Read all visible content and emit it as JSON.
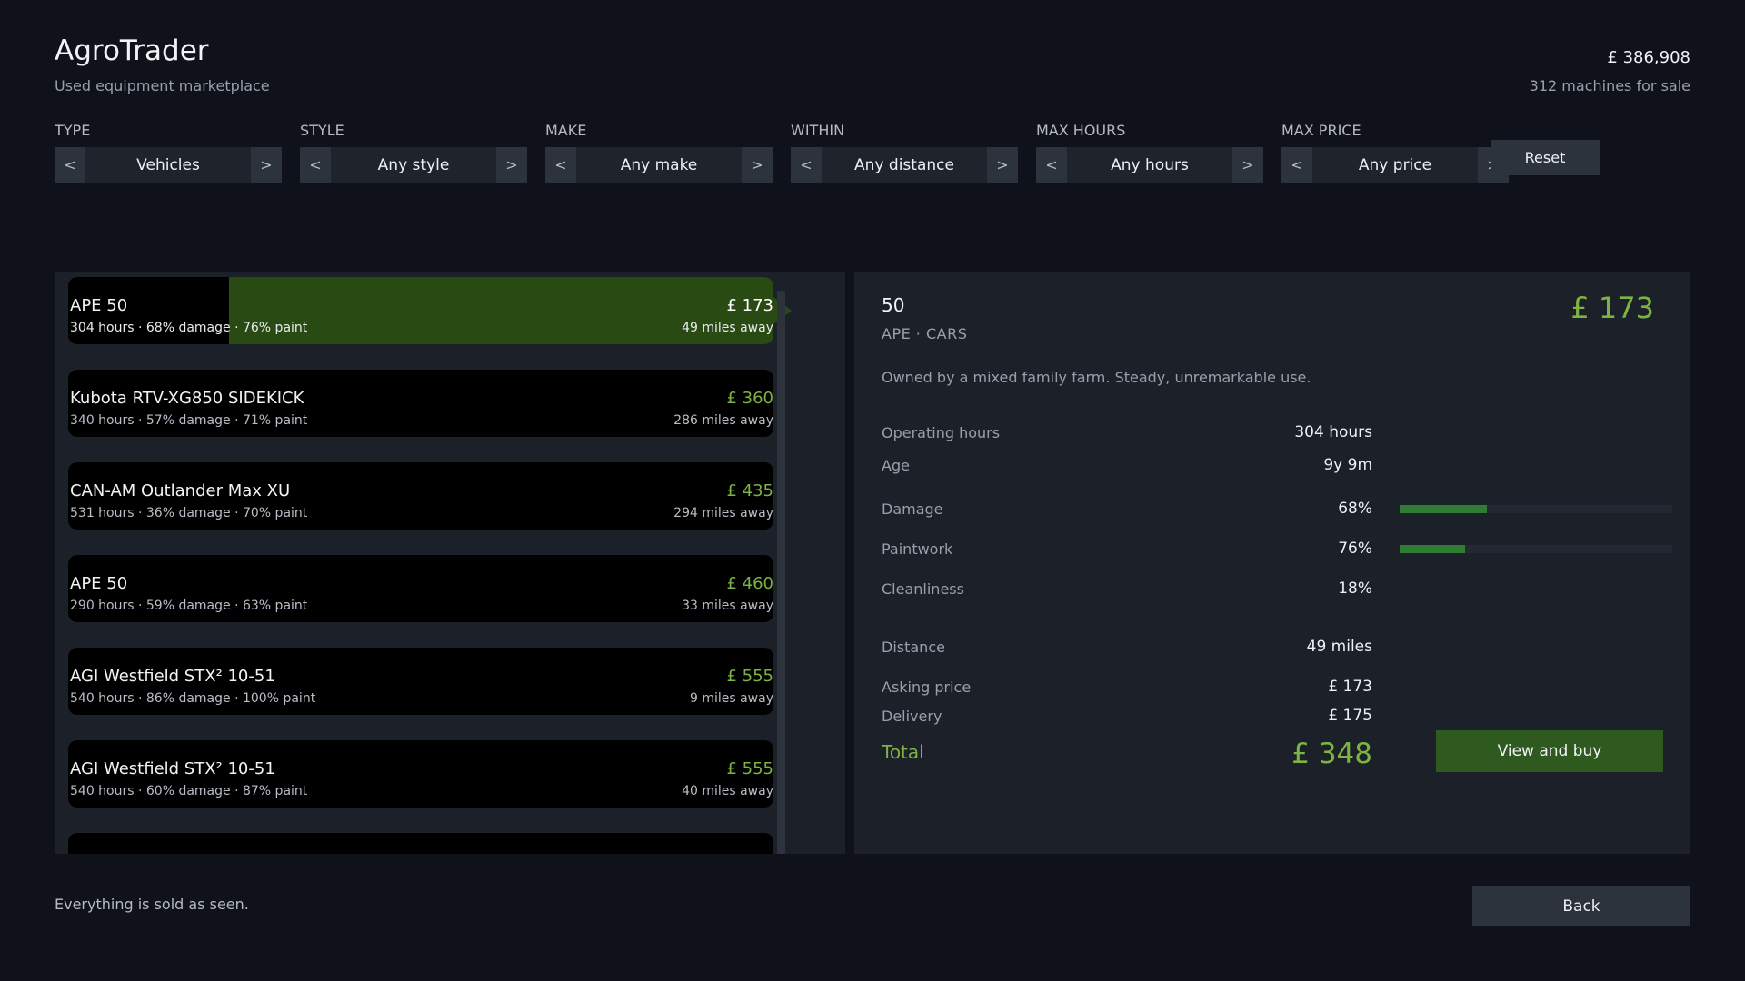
{
  "header": {
    "title": "AgroTrader",
    "subtitle": "Used equipment marketplace",
    "balance": "£ 386,908",
    "machine_count": "312 machines for sale"
  },
  "filters": [
    {
      "label": "TYPE",
      "value": "Vehicles",
      "prev": "<",
      "next": ">"
    },
    {
      "label": "STYLE",
      "value": "Any style",
      "prev": "<",
      "next": ">"
    },
    {
      "label": "MAKE",
      "value": "Any make",
      "prev": "<",
      "next": ">"
    },
    {
      "label": "WITHIN",
      "value": "Any distance",
      "prev": "<",
      "next": ">"
    },
    {
      "label": "MAX HOURS",
      "value": "Any hours",
      "prev": "<",
      "next": ">"
    },
    {
      "label": "MAX PRICE",
      "value": "Any price",
      "prev": "<",
      "next": ">"
    }
  ],
  "reset_label": "Reset",
  "listings": [
    {
      "name": "APE 50",
      "details": "304 hours · 68% damage · 76% paint",
      "price": "£ 173",
      "distance": "49 miles away",
      "selected": true
    },
    {
      "name": "Kubota RTV-XG850 SIDEKICK",
      "details": "340 hours · 57% damage · 71% paint",
      "price": "£ 360",
      "distance": "286 miles away"
    },
    {
      "name": "CAN-AM Outlander Max XU",
      "details": "531 hours · 36% damage · 70% paint",
      "price": "£ 435",
      "distance": "294 miles away"
    },
    {
      "name": "APE 50",
      "details": "290 hours · 59% damage · 63% paint",
      "price": "£ 460",
      "distance": "33 miles away"
    },
    {
      "name": "AGI Westfield STX² 10-51",
      "details": "540 hours · 86% damage · 100% paint",
      "price": "£ 555",
      "distance": "9 miles away"
    },
    {
      "name": "AGI Westfield STX² 10-51",
      "details": "540 hours · 60% damage · 87% paint",
      "price": "£ 555",
      "distance": "40 miles away"
    }
  ],
  "detail": {
    "title": "50",
    "subtitle": "APE · CARS",
    "price": "£ 173",
    "description": "Owned by a mixed family farm. Steady, unremarkable use.",
    "stats": {
      "hours_label": "Operating hours",
      "hours_value": "304 hours",
      "age_label": "Age",
      "age_value": "9y 9m",
      "damage_label": "Damage",
      "damage_value": "68%",
      "paint_label": "Paintwork",
      "paint_value": "76%",
      "clean_label": "Cleanliness",
      "clean_value": "18%",
      "distance_label": "Distance",
      "distance_value": "49 miles",
      "asking_label": "Asking price",
      "asking_value": "£ 173",
      "delivery_label": "Delivery",
      "delivery_value": "£ 175"
    },
    "damage_bar_fraction": 0.32,
    "paint_bar_fraction": 0.24,
    "total_label": "Total",
    "total_value": "£ 348",
    "buy_label": "View and buy"
  },
  "footer": {
    "note": "Everything is sold as seen.",
    "back_label": "Back"
  },
  "colors": {
    "background": "#0f121b",
    "panel": "#1b2029",
    "accent_green": "#7cb342",
    "selected_row": "#2a4a14",
    "button_green": "#2e5a1f"
  }
}
